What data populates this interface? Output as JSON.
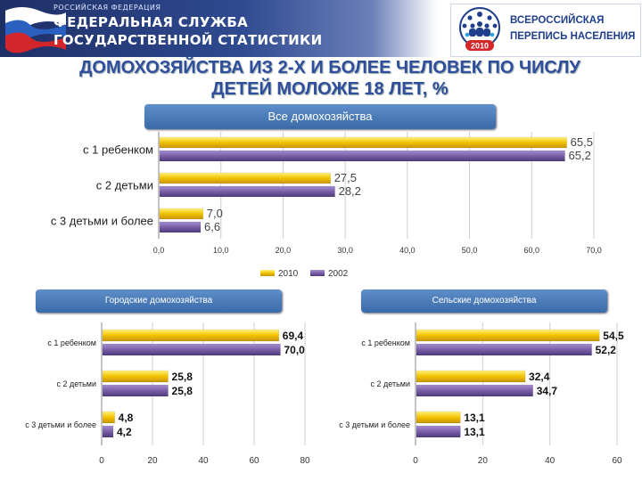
{
  "header": {
    "agency_small": "РОССИЙСКАЯ ФЕДЕРАЦИЯ",
    "agency_line1": "ФЕДЕРАЛЬНАЯ СЛУЖБА",
    "agency_line2": "ГОСУДАРСТВЕННОЙ СТАТИСТИКИ",
    "census_line1": "ВСЕРОССИЙСКАЯ",
    "census_line2": "ПЕРЕПИСЬ НАСЕЛЕНИЯ",
    "census_year": "2010"
  },
  "title_line1": "ДОМОХОЗЯЙСТВА ИЗ 2-Х И БОЛЕЕ ЧЕЛОВЕК ПО ЧИСЛУ",
  "title_line2": "ДЕТЕЙ МОЛОЖЕ 18 ЛЕТ, %",
  "colors": {
    "y2010": "#f2c200",
    "y2002": "#7a5ea8",
    "pill": "#4a7ab8",
    "title": "#2f4f9c"
  },
  "chart_data": [
    {
      "type": "bar",
      "orientation": "horizontal",
      "title": "Все домохозяйства",
      "categories": [
        "с 1 ребенком",
        "с 2 детьми",
        "с 3  детьми и более"
      ],
      "series": [
        {
          "name": "2010",
          "values": [
            65.5,
            27.5,
            7.0
          ],
          "labels": [
            "65,5",
            "27,5",
            "7,0"
          ]
        },
        {
          "name": "2002",
          "values": [
            65.2,
            28.2,
            6.6
          ],
          "labels": [
            "65,2",
            "28,2",
            "6,6"
          ]
        }
      ],
      "xlim": [
        0,
        70
      ],
      "ticks": [
        0,
        10,
        20,
        30,
        40,
        50,
        60,
        70
      ],
      "tick_labels": [
        "0,0",
        "10,0",
        "20,0",
        "30,0",
        "40,0",
        "50,0",
        "60,0",
        "70,0"
      ],
      "grid": true,
      "legend": "bottom"
    },
    {
      "type": "bar",
      "orientation": "horizontal",
      "title": "Городские домохозяйства",
      "categories": [
        "с 1 ребенком",
        "с 2 детьми",
        "с 3  детьми и более"
      ],
      "series": [
        {
          "name": "2010",
          "values": [
            69.4,
            25.8,
            4.8
          ],
          "labels": [
            "69,4",
            "25,8",
            "4,8"
          ]
        },
        {
          "name": "2002",
          "values": [
            70.0,
            25.8,
            4.2
          ],
          "labels": [
            "70,0",
            "25,8",
            "4,2"
          ]
        }
      ],
      "xlim": [
        0,
        80
      ],
      "ticks": [
        0,
        20,
        40,
        60,
        80
      ],
      "tick_labels": [
        "0",
        "20",
        "40",
        "60",
        "80"
      ],
      "grid": true
    },
    {
      "type": "bar",
      "orientation": "horizontal",
      "title": "Сельские домохозяйства",
      "categories": [
        "с 1 ребенком",
        "с 2 детьми",
        "с 3  детьми и более"
      ],
      "series": [
        {
          "name": "2010",
          "values": [
            54.5,
            32.4,
            13.1
          ],
          "labels": [
            "54,5",
            "32,4",
            "13,1"
          ]
        },
        {
          "name": "2002",
          "values": [
            52.2,
            34.7,
            13.1
          ],
          "labels": [
            "52,2",
            "34,7",
            "13,1"
          ]
        }
      ],
      "xlim": [
        0,
        60
      ],
      "ticks": [
        0,
        20,
        40,
        60
      ],
      "tick_labels": [
        "0",
        "20",
        "40",
        "60"
      ],
      "grid": true
    }
  ]
}
